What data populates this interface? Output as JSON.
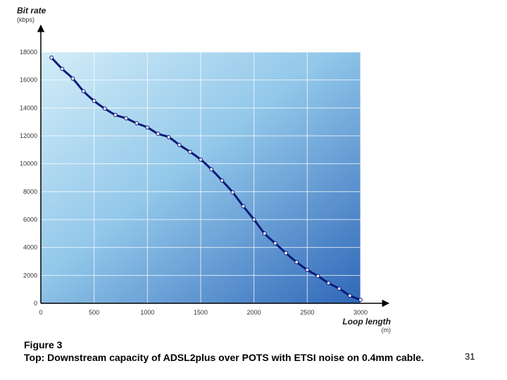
{
  "chart_data": {
    "type": "line",
    "ylabel": "Bit rate",
    "yunit": "(kbps)",
    "xlabel": "Loop length",
    "xunit": "(m)",
    "xlim": [
      0,
      3000
    ],
    "ylim": [
      0,
      18000
    ],
    "xticks": [
      0,
      500,
      1000,
      1500,
      2000,
      2500,
      3000
    ],
    "yticks": [
      0,
      2000,
      4000,
      6000,
      8000,
      10000,
      12000,
      14000,
      16000,
      18000
    ],
    "grid": true,
    "series": [
      {
        "x": [
          100,
          200,
          300,
          400,
          500,
          600,
          700,
          800,
          900,
          1000,
          1100,
          1200,
          1300,
          1400,
          1500,
          1600,
          1700,
          1800,
          1900,
          2000,
          2100,
          2200,
          2300,
          2400,
          2500,
          2600,
          2700,
          2800,
          2900,
          3000
        ],
        "values": [
          17600,
          16800,
          16100,
          15200,
          14500,
          13950,
          13500,
          13250,
          12900,
          12600,
          12150,
          11900,
          11350,
          10850,
          10300,
          9600,
          8800,
          7950,
          6950,
          6000,
          5000,
          4300,
          3600,
          2950,
          2400,
          1950,
          1450,
          1050,
          550,
          250
        ]
      }
    ],
    "colors": {
      "line": "#0d1a78",
      "marker_fill": "#ffffff",
      "bg_light": "#d3edf8",
      "bg_dark": "#2f67b8"
    }
  },
  "caption": {
    "figure_label": "Figure 3",
    "text": "Top: Downstream capacity of ADSL2plus over POTS with ETSI noise on 0.4mm cable."
  },
  "page_number": "31"
}
